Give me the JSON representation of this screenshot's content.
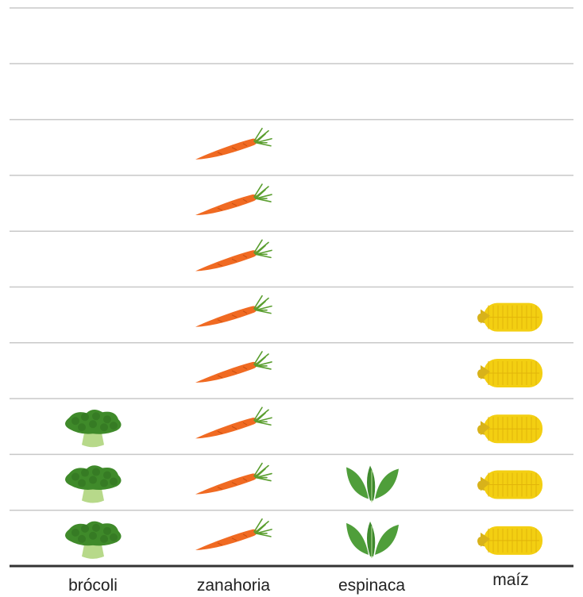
{
  "chart_data": {
    "type": "pictograph",
    "categories": [
      "brócoli",
      "zanahoria",
      "espinaca",
      "maíz"
    ],
    "values": [
      3,
      8,
      2,
      5
    ],
    "icons": [
      "broccoli-icon",
      "carrot-icon",
      "spinach-icon",
      "corn-icon"
    ],
    "ylim": [
      0,
      10
    ],
    "grid": true,
    "colors": {
      "grid": "#c8c8c8",
      "baseline": "#333333",
      "carrot": "#f06a22",
      "carrot_leaf": "#5a9e2f",
      "broccoli": "#3f8a2a",
      "broccoli_stem": "#b7d98a",
      "spinach": "#4f9e3a",
      "corn": "#f3cf12",
      "corn_husk": "#d8b21a"
    }
  }
}
